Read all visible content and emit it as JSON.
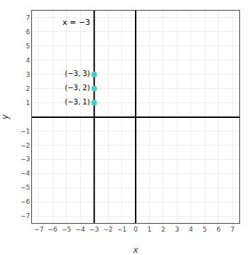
{
  "chart_data": {
    "type": "scatter",
    "xlabel": "x",
    "ylabel": "y",
    "xlim": [
      -7.5,
      7.5
    ],
    "ylim": [
      -7.5,
      7.5
    ],
    "xticks": [
      {
        "value": -7,
        "label": "−7"
      },
      {
        "value": -6,
        "label": "−6"
      },
      {
        "value": -5,
        "label": "−5"
      },
      {
        "value": -4,
        "label": "−4"
      },
      {
        "value": -3,
        "label": "−3"
      },
      {
        "value": -2,
        "label": "−2"
      },
      {
        "value": -1,
        "label": "−1"
      },
      0,
      1,
      2,
      3,
      4,
      5,
      6,
      7
    ],
    "yticks": [
      {
        "value": -7,
        "label": "−7"
      },
      {
        "value": -6,
        "label": "−6"
      },
      {
        "value": -5,
        "label": "−5"
      },
      {
        "value": -4,
        "label": "−4"
      },
      {
        "value": -3,
        "label": "−3"
      },
      {
        "value": -2,
        "label": "−2"
      },
      {
        "value": -1,
        "label": "−1"
      },
      1,
      2,
      3,
      4,
      5,
      6,
      7
    ],
    "grid": true,
    "series": [
      {
        "name": "x = −3",
        "type": "line",
        "color": "black",
        "x": [
          -3,
          -3
        ],
        "values": [
          -7.5,
          7.5
        ]
      },
      {
        "type": "scatter",
        "marker": "circle",
        "color": "#40d0d0",
        "x": [
          -3,
          -3,
          -3
        ],
        "values": [
          3,
          2,
          1
        ],
        "value_labels": [
          "(−3, 3)",
          "(−3, 2)",
          "(−3, 1)"
        ]
      }
    ]
  }
}
